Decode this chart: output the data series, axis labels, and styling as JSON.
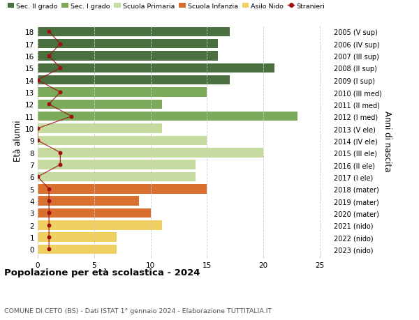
{
  "ages": [
    18,
    17,
    16,
    15,
    14,
    13,
    12,
    11,
    10,
    9,
    8,
    7,
    6,
    5,
    4,
    3,
    2,
    1,
    0
  ],
  "right_labels": [
    "2005 (V sup)",
    "2006 (IV sup)",
    "2007 (III sup)",
    "2008 (II sup)",
    "2009 (I sup)",
    "2010 (III med)",
    "2011 (II med)",
    "2012 (I med)",
    "2013 (V ele)",
    "2014 (IV ele)",
    "2015 (III ele)",
    "2016 (II ele)",
    "2017 (I ele)",
    "2018 (mater)",
    "2019 (mater)",
    "2020 (mater)",
    "2021 (nido)",
    "2022 (nido)",
    "2023 (nido)"
  ],
  "bar_values": [
    17,
    16,
    16,
    21,
    17,
    15,
    11,
    23,
    11,
    15,
    20,
    14,
    14,
    15,
    9,
    10,
    11,
    7,
    7
  ],
  "bar_colors": [
    "#4a7040",
    "#4a7040",
    "#4a7040",
    "#4a7040",
    "#4a7040",
    "#7aaa5a",
    "#7aaa5a",
    "#7aaa5a",
    "#c5dba0",
    "#c5dba0",
    "#c5dba0",
    "#c5dba0",
    "#c5dba0",
    "#d97030",
    "#d97030",
    "#d97030",
    "#f0d060",
    "#f0d060",
    "#f0d060"
  ],
  "stranieri_values": [
    1,
    2,
    1,
    2,
    0,
    2,
    1,
    3,
    0,
    0,
    2,
    2,
    0,
    1,
    1,
    1,
    1,
    1,
    1
  ],
  "stranieri_color": "#a01010",
  "legend_items": [
    {
      "label": "Sec. II grado",
      "color": "#4a7040"
    },
    {
      "label": "Sec. I grado",
      "color": "#7aaa5a"
    },
    {
      "label": "Scuola Primaria",
      "color": "#c5dba0"
    },
    {
      "label": "Scuola Infanzia",
      "color": "#d97030"
    },
    {
      "label": "Asilo Nido",
      "color": "#f0d060"
    },
    {
      "label": "Stranieri",
      "color": "#a01010"
    }
  ],
  "ylabel": "Età alunni",
  "right_ylabel": "Anni di nascita",
  "xlim": [
    0,
    26
  ],
  "xticks": [
    0,
    5,
    10,
    15,
    20,
    25
  ],
  "title": "Popolazione per età scolastica - 2024",
  "subtitle": "COMUNE DI CETO (BS) - Dati ISTAT 1° gennaio 2024 - Elaborazione TUTTITALIA.IT",
  "bg_color": "#ffffff",
  "grid_color": "#cccccc"
}
